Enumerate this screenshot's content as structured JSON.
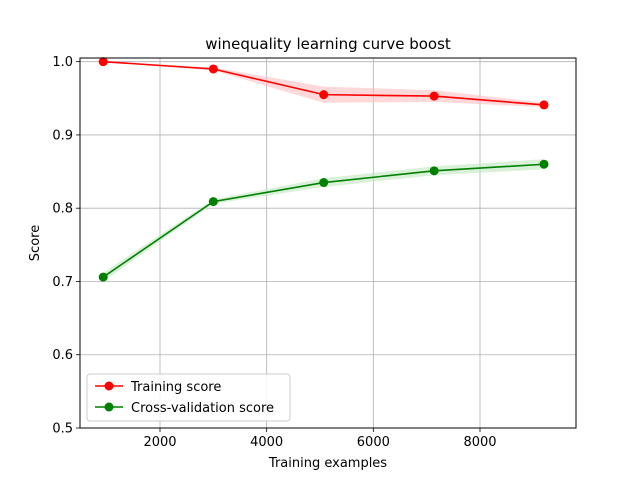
{
  "chart_data": {
    "type": "line",
    "title": "winequality learning curve boost",
    "xlabel": "Training examples",
    "ylabel": "Score",
    "xlim": [
      500,
      9800
    ],
    "ylim": [
      0.5,
      1.005
    ],
    "xticks": [
      2000,
      4000,
      6000,
      8000
    ],
    "xtick_labels": [
      "2000",
      "4000",
      "6000",
      "8000"
    ],
    "yticks": [
      0.5,
      0.6,
      0.7,
      0.8,
      0.9,
      1.0
    ],
    "ytick_labels": [
      "0.5",
      "0.6",
      "0.7",
      "0.8",
      "0.9",
      "1.0"
    ],
    "grid": true,
    "legend": "lower-left",
    "series": [
      {
        "name": "Training score",
        "color": "#ff0000",
        "band_color": "#ffc0c0",
        "x": [
          935,
          3000,
          5070,
          7140,
          9200
        ],
        "values": [
          1.0,
          0.99,
          0.955,
          0.953,
          0.941
        ],
        "lower": [
          0.9995,
          0.988,
          0.944,
          0.945,
          0.938
        ],
        "upper": [
          1.0005,
          0.992,
          0.966,
          0.961,
          0.944
        ]
      },
      {
        "name": "Cross-validation score",
        "color": "#008000",
        "band_color": "#bfe6bf",
        "x": [
          935,
          3000,
          5070,
          7140,
          9200
        ],
        "values": [
          0.706,
          0.809,
          0.835,
          0.851,
          0.86
        ],
        "lower": [
          0.7,
          0.806,
          0.829,
          0.845,
          0.853
        ],
        "upper": [
          0.712,
          0.812,
          0.841,
          0.857,
          0.867
        ]
      }
    ]
  }
}
